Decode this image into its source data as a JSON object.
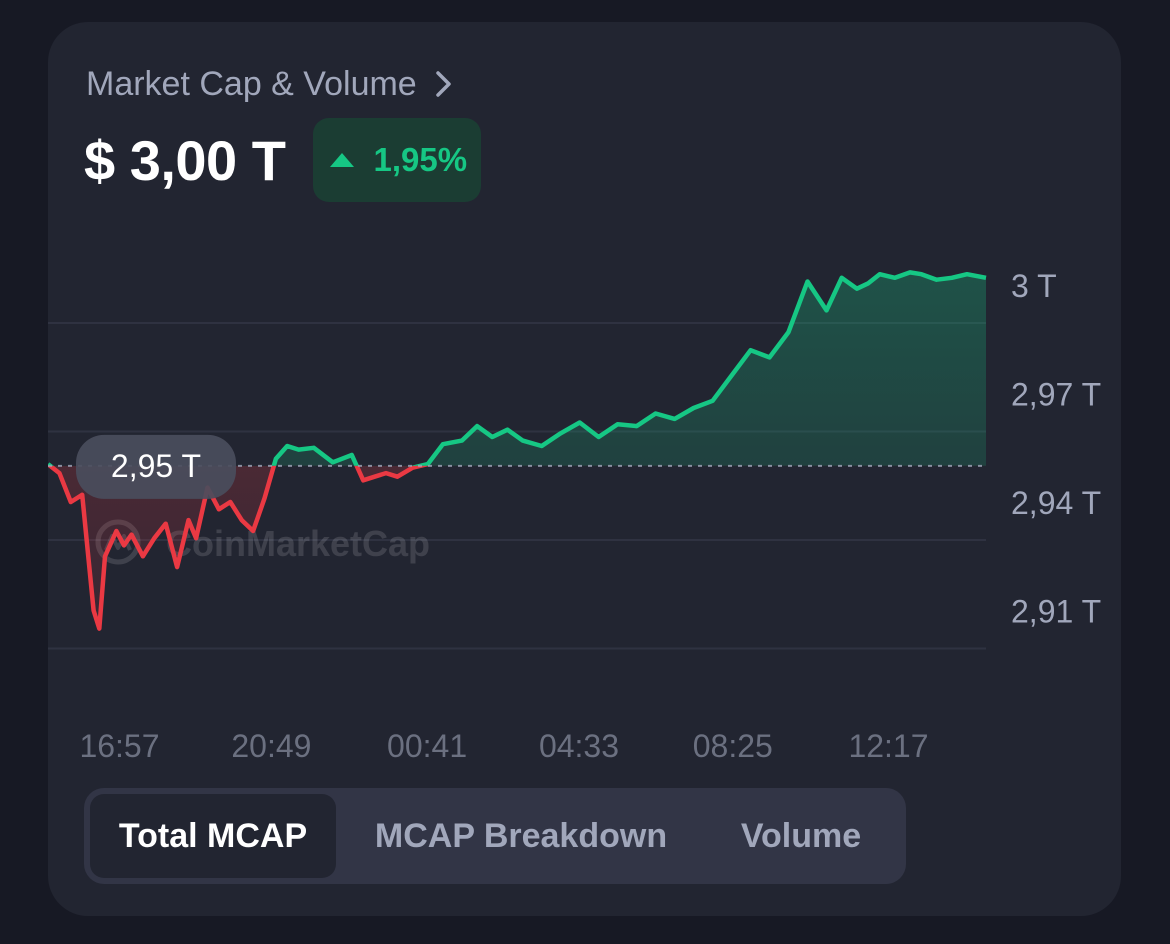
{
  "header": {
    "title": "Market Cap & Volume",
    "value": "$ 3,00 T",
    "change": "1,95%"
  },
  "tabs": [
    {
      "label": "Total MCAP",
      "active": true
    },
    {
      "label": "MCAP Breakdown",
      "active": false
    },
    {
      "label": "Volume",
      "active": false
    }
  ],
  "watermark": "CoinMarketCap",
  "colors": {
    "up": "#16c784",
    "down": "#ea3943",
    "background": "#171924",
    "card": "#222531"
  },
  "chart_data": {
    "type": "area",
    "baseline": {
      "value": 2.95,
      "label": "2,95 T"
    },
    "y_ticks": [
      {
        "value": 3.0,
        "label": "3 T"
      },
      {
        "value": 2.97,
        "label": "2,97 T"
      },
      {
        "value": 2.94,
        "label": "2,94 T"
      },
      {
        "value": 2.91,
        "label": "2,91 T"
      }
    ],
    "ylim": [
      2.893,
      3.005
    ],
    "x_ticks": [
      {
        "hours": 0.75,
        "label": "16:57"
      },
      {
        "hours": 4.75,
        "label": "20:49"
      },
      {
        "hours": 8.85,
        "label": "00:41"
      },
      {
        "hours": 12.85,
        "label": "04:33"
      },
      {
        "hours": 16.9,
        "label": "08:25"
      },
      {
        "hours": 21.0,
        "label": "12:17"
      }
    ],
    "xlim": [
      0,
      24.7
    ],
    "x": [
      0,
      0.3,
      0.6,
      0.9,
      1.2,
      1.35,
      1.5,
      1.8,
      2.0,
      2.2,
      2.5,
      2.8,
      3.1,
      3.4,
      3.7,
      3.9,
      4.2,
      4.5,
      4.8,
      5.1,
      5.4,
      5.7,
      6.0,
      6.3,
      6.6,
      7.0,
      7.5,
      8.0,
      8.3,
      8.6,
      8.9,
      9.2,
      9.6,
      10.0,
      10.4,
      10.9,
      11.3,
      11.7,
      12.1,
      12.5,
      13.0,
      13.5,
      14.0,
      14.5,
      15.0,
      15.5,
      16.0,
      16.5,
      17.0,
      17.5,
      18.0,
      18.5,
      19.0,
      19.5,
      20.0,
      20.5,
      20.9,
      21.3,
      21.6,
      21.9,
      22.3,
      22.7,
      23.0,
      23.4,
      23.8,
      24.2,
      24.7
    ],
    "y": [
      2.9505,
      2.948,
      2.94,
      2.942,
      2.91,
      2.905,
      2.925,
      2.932,
      2.928,
      2.931,
      2.925,
      2.93,
      2.934,
      2.922,
      2.935,
      2.93,
      2.944,
      2.938,
      2.94,
      2.935,
      2.932,
      2.941,
      2.952,
      2.9555,
      2.9545,
      2.955,
      2.951,
      2.953,
      2.946,
      2.947,
      2.948,
      2.947,
      2.9495,
      2.9505,
      2.956,
      2.957,
      2.961,
      2.958,
      2.96,
      2.957,
      2.9555,
      2.959,
      2.962,
      2.958,
      2.9615,
      2.961,
      2.9645,
      2.963,
      2.966,
      2.968,
      2.975,
      2.982,
      2.98,
      2.987,
      3.001,
      2.993,
      3.002,
      2.999,
      3.0005,
      3.003,
      3.002,
      3.0035,
      3.003,
      3.0015,
      3.002,
      3.003,
      3.002
    ]
  }
}
